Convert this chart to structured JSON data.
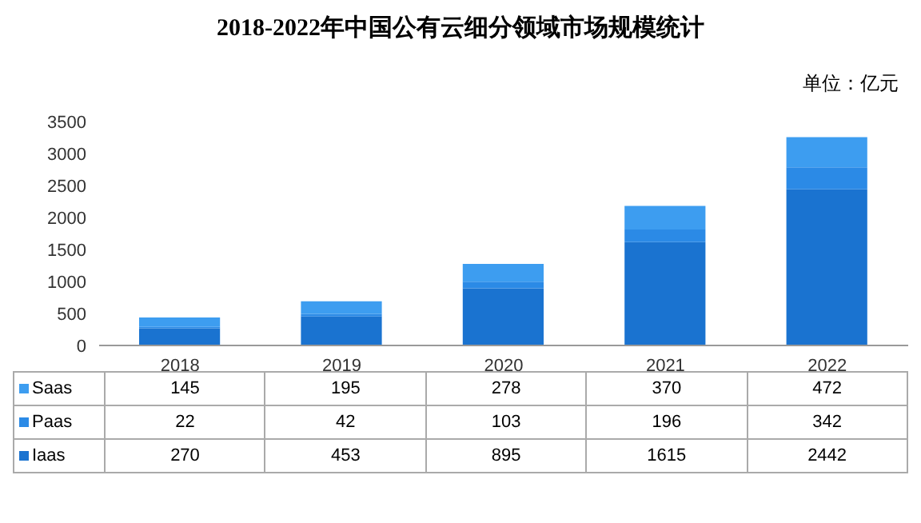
{
  "chart_data": {
    "type": "bar",
    "title": "2018-2022年中国公有云细分领域市场规模统计",
    "annotations": [
      "单位：亿元"
    ],
    "categories": [
      "2018",
      "2019",
      "2020",
      "2021",
      "2022"
    ],
    "stacked": true,
    "series": [
      {
        "name": "Iaas",
        "color": "#1a73d0",
        "values": [
          270,
          453,
          895,
          1615,
          2442
        ]
      },
      {
        "name": "Paas",
        "color": "#2b8ae6",
        "values": [
          22,
          42,
          103,
          196,
          342
        ]
      },
      {
        "name": "Saas",
        "color": "#3d9df0",
        "values": [
          145,
          195,
          278,
          370,
          472
        ]
      }
    ],
    "ylim": [
      0,
      3500
    ],
    "yticks": [
      0,
      500,
      1000,
      1500,
      2000,
      2500,
      3000,
      3500
    ],
    "grid": false,
    "legend": "bottom",
    "data_labels": true
  }
}
